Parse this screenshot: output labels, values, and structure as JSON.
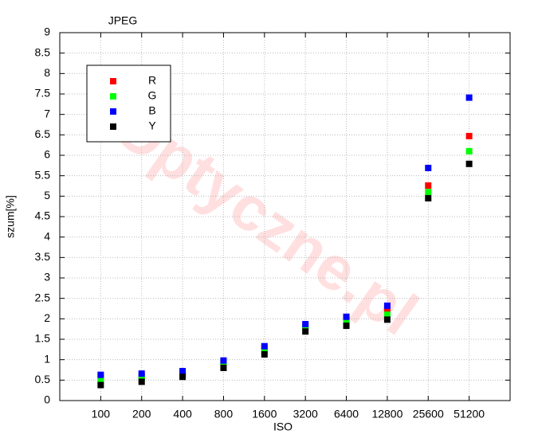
{
  "chart_data": {
    "type": "scatter",
    "title": "JPEG",
    "x_label": "ISO",
    "y_label": "szum[%]",
    "watermark": "Optyczne.pl",
    "categories": [
      "100",
      "200",
      "400",
      "800",
      "1600",
      "3200",
      "6400",
      "12800",
      "25600",
      "51200"
    ],
    "series": [
      {
        "name": "R",
        "color": "#ff0000",
        "values": [
          0.57,
          0.6,
          0.66,
          0.93,
          1.28,
          1.83,
          2.0,
          2.25,
          5.26,
          6.47
        ]
      },
      {
        "name": "G",
        "color": "#00ff00",
        "values": [
          0.5,
          0.55,
          0.62,
          0.88,
          1.22,
          1.78,
          1.95,
          2.1,
          5.1,
          6.1
        ]
      },
      {
        "name": "B",
        "color": "#0000ff",
        "values": [
          0.63,
          0.66,
          0.72,
          0.98,
          1.33,
          1.87,
          2.05,
          2.32,
          5.69,
          7.41
        ]
      },
      {
        "name": "Y",
        "color": "#000000",
        "values": [
          0.38,
          0.46,
          0.58,
          0.8,
          1.13,
          1.69,
          1.83,
          1.98,
          4.95,
          5.79
        ]
      }
    ],
    "ylim": [
      0,
      9
    ],
    "yticks": [
      0,
      0.5,
      1,
      1.5,
      2,
      2.5,
      3,
      3.5,
      4,
      4.5,
      5,
      5.5,
      6,
      6.5,
      7,
      7.5,
      8,
      8.5,
      9
    ],
    "grid": true,
    "legend": "upper left"
  }
}
